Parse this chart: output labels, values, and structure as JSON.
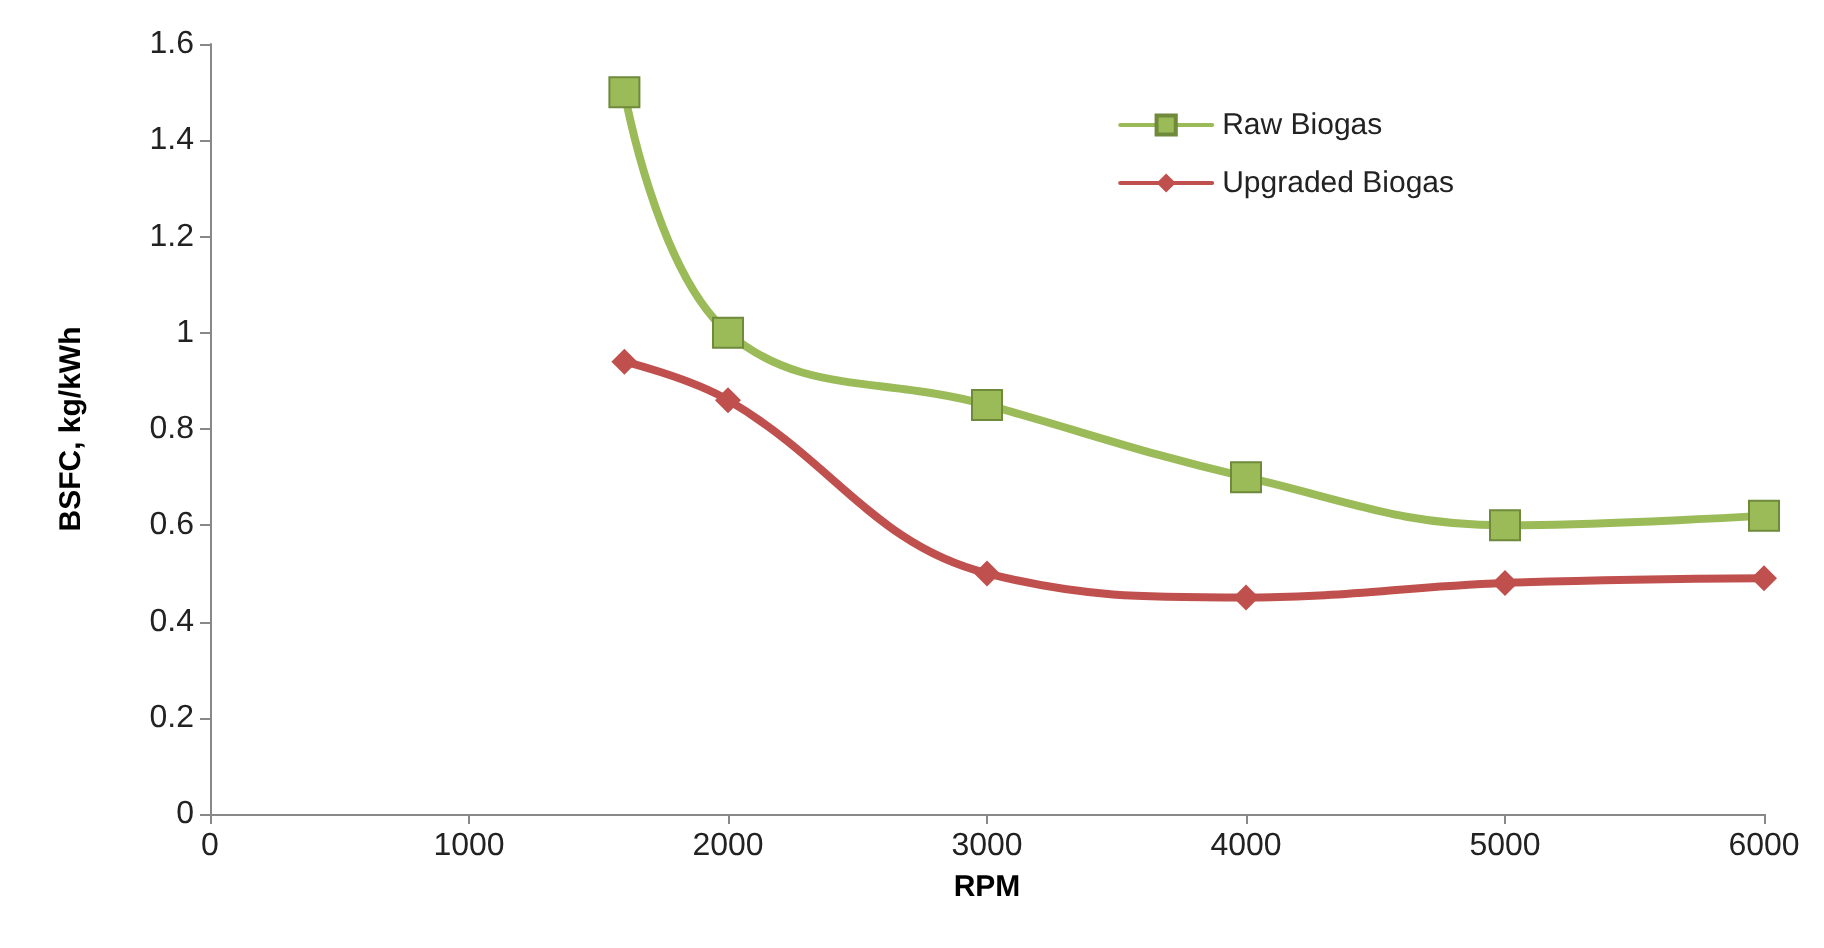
{
  "chart_data": {
    "type": "line",
    "xlabel": "RPM",
    "ylabel": "BSFC, kg/kWh",
    "xlim": [
      0,
      6000
    ],
    "xticks": [
      0,
      1000,
      2000,
      3000,
      4000,
      5000,
      6000
    ],
    "ylim": [
      0,
      1.6
    ],
    "yticks": [
      0,
      0.2,
      0.4,
      0.6,
      0.8,
      1,
      1.2,
      1.4,
      1.6
    ],
    "grid": false,
    "legend": "top right",
    "line_style": "solid",
    "series": [
      {
        "name": "Raw Biogas",
        "color": "#9bbb59",
        "marker": "square",
        "x": [
          1600,
          2000,
          3000,
          4000,
          5000,
          6000
        ],
        "values": [
          1.5,
          1.0,
          0.85,
          0.7,
          0.6,
          0.62
        ]
      },
      {
        "name": "Upgraded Biogas",
        "color": "#c0504d",
        "marker": "diamond",
        "x": [
          1600,
          2000,
          3000,
          4000,
          5000,
          6000
        ],
        "values": [
          0.94,
          0.86,
          0.5,
          0.45,
          0.48,
          0.49
        ]
      }
    ]
  }
}
